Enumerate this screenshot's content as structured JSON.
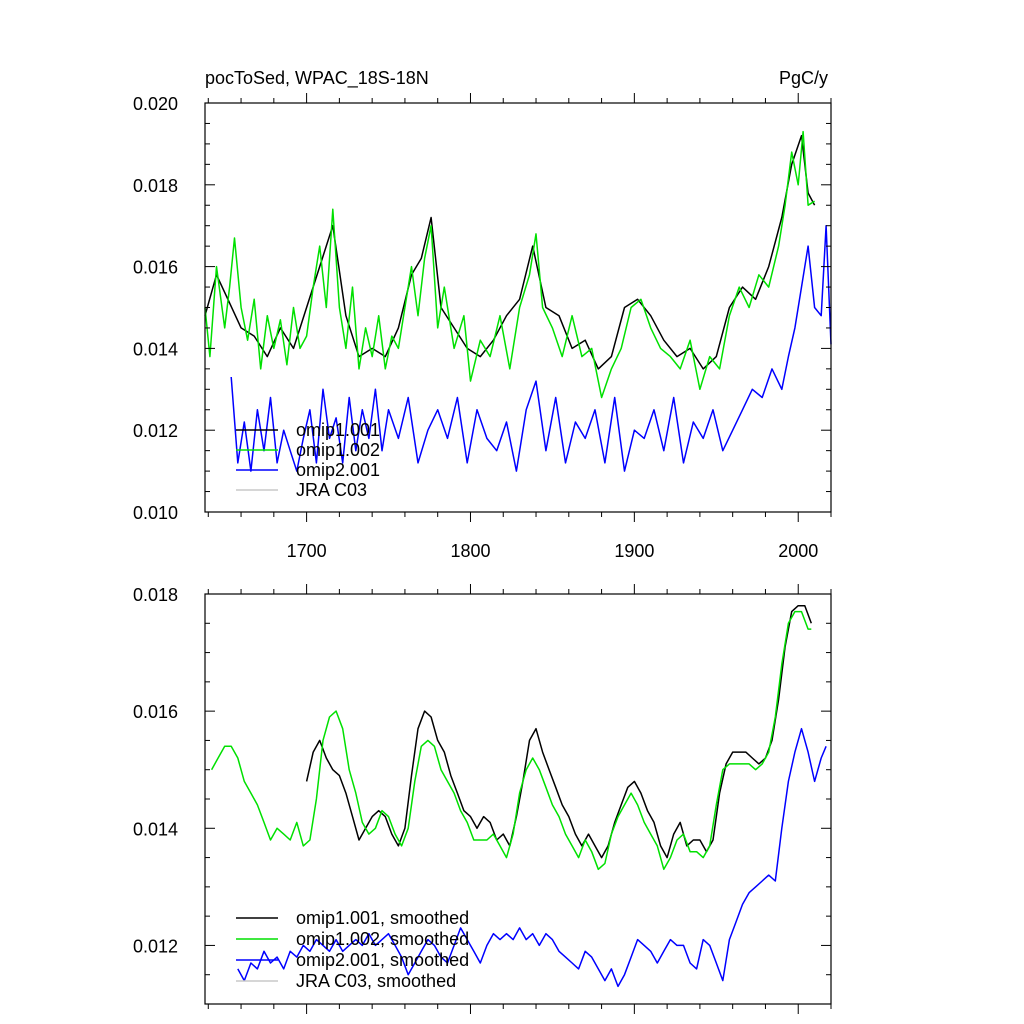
{
  "chart_data": [
    {
      "type": "line",
      "title_left": "pocToSed, WPAC_18S-18N",
      "title_right": "PgC/y",
      "xlim": [
        1638,
        2020
      ],
      "ylim": [
        0.01,
        0.02
      ],
      "x_ticks": [
        1700,
        1800,
        1900,
        2000
      ],
      "x_tick_labels": [
        "1700",
        "1800",
        "1900",
        "2000"
      ],
      "y_ticks": [
        0.01,
        0.012,
        0.014,
        0.016,
        0.018,
        0.02
      ],
      "y_tick_labels": [
        "0.010",
        "0.012",
        "0.014",
        "0.016",
        "0.018",
        "0.020"
      ],
      "grid": false,
      "legend_position": "lower-left",
      "series": [
        {
          "name": "omip1.001",
          "color": "#000000",
          "x": [
            1638,
            1645,
            1652,
            1660,
            1668,
            1676,
            1684,
            1692,
            1700,
            1708,
            1716,
            1724,
            1732,
            1740,
            1748,
            1756,
            1764,
            1770,
            1776,
            1782,
            1790,
            1798,
            1806,
            1814,
            1822,
            1830,
            1838,
            1846,
            1854,
            1862,
            1870,
            1878,
            1886,
            1894,
            1902,
            1910,
            1918,
            1926,
            1934,
            1942,
            1950,
            1958,
            1966,
            1974,
            1982,
            1990,
            1996,
            2002,
            2006,
            2010
          ],
          "y": [
            0.0148,
            0.0158,
            0.0152,
            0.0145,
            0.0143,
            0.0138,
            0.0145,
            0.014,
            0.015,
            0.016,
            0.017,
            0.0148,
            0.0138,
            0.014,
            0.0138,
            0.0145,
            0.0158,
            0.0162,
            0.0172,
            0.015,
            0.0145,
            0.014,
            0.0138,
            0.0142,
            0.0148,
            0.0152,
            0.0165,
            0.015,
            0.0148,
            0.014,
            0.0142,
            0.0135,
            0.0138,
            0.015,
            0.0152,
            0.0148,
            0.0142,
            0.0138,
            0.014,
            0.0135,
            0.0138,
            0.015,
            0.0155,
            0.0152,
            0.016,
            0.0172,
            0.0185,
            0.0192,
            0.0178,
            0.0175
          ]
        },
        {
          "name": "omip1.002",
          "color": "#00e000",
          "x": [
            1638,
            1641,
            1645,
            1650,
            1653,
            1656,
            1660,
            1664,
            1668,
            1672,
            1676,
            1680,
            1684,
            1688,
            1692,
            1696,
            1700,
            1704,
            1708,
            1712,
            1716,
            1720,
            1724,
            1728,
            1732,
            1736,
            1740,
            1744,
            1748,
            1752,
            1756,
            1760,
            1764,
            1768,
            1772,
            1776,
            1780,
            1784,
            1790,
            1796,
            1800,
            1806,
            1812,
            1818,
            1824,
            1830,
            1836,
            1840,
            1844,
            1850,
            1856,
            1862,
            1868,
            1874,
            1880,
            1886,
            1892,
            1898,
            1904,
            1910,
            1916,
            1922,
            1928,
            1934,
            1940,
            1946,
            1952,
            1958,
            1964,
            1970,
            1976,
            1982,
            1988,
            1992,
            1996,
            2000,
            2003,
            2006,
            2010
          ],
          "y": [
            0.015,
            0.0138,
            0.016,
            0.0145,
            0.0155,
            0.0167,
            0.015,
            0.0142,
            0.0152,
            0.0135,
            0.0148,
            0.014,
            0.0147,
            0.0136,
            0.015,
            0.014,
            0.0143,
            0.0155,
            0.0165,
            0.015,
            0.0174,
            0.015,
            0.014,
            0.0155,
            0.0135,
            0.0145,
            0.0138,
            0.0148,
            0.0135,
            0.0143,
            0.014,
            0.015,
            0.016,
            0.0148,
            0.0162,
            0.017,
            0.0145,
            0.0155,
            0.014,
            0.0148,
            0.0132,
            0.0142,
            0.0138,
            0.0148,
            0.0135,
            0.015,
            0.0158,
            0.0168,
            0.015,
            0.0145,
            0.0138,
            0.0148,
            0.0138,
            0.014,
            0.0128,
            0.0135,
            0.014,
            0.015,
            0.0152,
            0.0145,
            0.014,
            0.0138,
            0.0135,
            0.0142,
            0.013,
            0.0138,
            0.0135,
            0.0148,
            0.0155,
            0.015,
            0.0158,
            0.0155,
            0.0165,
            0.0175,
            0.0188,
            0.018,
            0.0193,
            0.0175,
            0.0176
          ]
        },
        {
          "name": "omip2.001",
          "color": "#0000ff",
          "x": [
            1654,
            1658,
            1662,
            1666,
            1670,
            1674,
            1678,
            1682,
            1686,
            1690,
            1694,
            1698,
            1702,
            1706,
            1710,
            1714,
            1718,
            1722,
            1726,
            1730,
            1734,
            1738,
            1742,
            1746,
            1750,
            1756,
            1762,
            1768,
            1774,
            1780,
            1786,
            1792,
            1798,
            1804,
            1810,
            1816,
            1822,
            1828,
            1834,
            1840,
            1846,
            1852,
            1858,
            1864,
            1870,
            1876,
            1882,
            1888,
            1894,
            1900,
            1906,
            1912,
            1918,
            1924,
            1930,
            1936,
            1942,
            1948,
            1954,
            1960,
            1966,
            1972,
            1978,
            1984,
            1990,
            1994,
            1998,
            2002,
            2006,
            2010,
            2014,
            2017,
            2020
          ],
          "y": [
            0.0133,
            0.0112,
            0.0122,
            0.011,
            0.0125,
            0.0115,
            0.0128,
            0.0112,
            0.012,
            0.0115,
            0.011,
            0.0118,
            0.0125,
            0.0112,
            0.013,
            0.0118,
            0.0123,
            0.0112,
            0.0128,
            0.0115,
            0.0125,
            0.0118,
            0.013,
            0.0115,
            0.0125,
            0.0118,
            0.0128,
            0.0112,
            0.012,
            0.0125,
            0.0118,
            0.0128,
            0.0112,
            0.0125,
            0.0118,
            0.0115,
            0.0122,
            0.011,
            0.0125,
            0.0132,
            0.0115,
            0.0128,
            0.0112,
            0.0122,
            0.0118,
            0.0125,
            0.0112,
            0.0128,
            0.011,
            0.012,
            0.0118,
            0.0125,
            0.0115,
            0.0128,
            0.0112,
            0.0122,
            0.0118,
            0.0125,
            0.0115,
            0.012,
            0.0125,
            0.013,
            0.0128,
            0.0135,
            0.013,
            0.0138,
            0.0145,
            0.0155,
            0.0165,
            0.015,
            0.0148,
            0.017,
            0.0141
          ]
        },
        {
          "name": "JRA C03",
          "color": "#c8c8c8",
          "x": [],
          "y": []
        }
      ]
    },
    {
      "type": "line",
      "xlim": [
        1638,
        2020
      ],
      "ylim": [
        0.011,
        0.018
      ],
      "x_ticks": [
        1700,
        1800,
        1900,
        2000
      ],
      "y_ticks": [
        0.012,
        0.014,
        0.016,
        0.018
      ],
      "y_tick_labels": [
        "0.012",
        "0.014",
        "0.016",
        "0.018"
      ],
      "grid": false,
      "legend_position": "lower-left",
      "series": [
        {
          "name": "omip1.001, smoothed",
          "color": "#000000",
          "x": [
            1700,
            1704,
            1708,
            1712,
            1716,
            1720,
            1724,
            1728,
            1732,
            1736,
            1740,
            1744,
            1748,
            1752,
            1756,
            1760,
            1764,
            1768,
            1772,
            1776,
            1780,
            1784,
            1788,
            1792,
            1796,
            1800,
            1804,
            1808,
            1812,
            1816,
            1820,
            1824,
            1828,
            1832,
            1836,
            1840,
            1844,
            1848,
            1852,
            1856,
            1860,
            1864,
            1868,
            1872,
            1876,
            1880,
            1884,
            1888,
            1892,
            1896,
            1900,
            1904,
            1908,
            1912,
            1916,
            1920,
            1924,
            1928,
            1932,
            1936,
            1940,
            1944,
            1948,
            1952,
            1956,
            1960,
            1964,
            1968,
            1972,
            1976,
            1980,
            1984,
            1988,
            1992,
            1996,
            2000,
            2004,
            2008
          ],
          "y": [
            0.0148,
            0.0153,
            0.0155,
            0.0152,
            0.015,
            0.0149,
            0.0146,
            0.0142,
            0.0138,
            0.014,
            0.0142,
            0.0143,
            0.0142,
            0.0139,
            0.0137,
            0.014,
            0.0149,
            0.0157,
            0.016,
            0.0159,
            0.0155,
            0.0153,
            0.0149,
            0.0146,
            0.0143,
            0.0142,
            0.014,
            0.0142,
            0.0141,
            0.0138,
            0.0139,
            0.0137,
            0.0142,
            0.0148,
            0.0155,
            0.0157,
            0.0153,
            0.015,
            0.0147,
            0.0144,
            0.0142,
            0.0139,
            0.0137,
            0.0139,
            0.0137,
            0.0135,
            0.0137,
            0.0141,
            0.0144,
            0.0147,
            0.0148,
            0.0146,
            0.0143,
            0.0141,
            0.0137,
            0.0135,
            0.0139,
            0.0141,
            0.0137,
            0.0138,
            0.0138,
            0.0136,
            0.0138,
            0.0146,
            0.0151,
            0.0153,
            0.0153,
            0.0153,
            0.0152,
            0.0151,
            0.0152,
            0.0155,
            0.0162,
            0.0171,
            0.0177,
            0.0178,
            0.0178,
            0.0175
          ]
        },
        {
          "name": "omip1.002, smoothed",
          "color": "#00e000",
          "x": [
            1642,
            1646,
            1650,
            1654,
            1658,
            1662,
            1666,
            1670,
            1674,
            1678,
            1682,
            1686,
            1690,
            1694,
            1698,
            1702,
            1706,
            1710,
            1714,
            1718,
            1722,
            1726,
            1730,
            1734,
            1738,
            1742,
            1746,
            1750,
            1754,
            1758,
            1762,
            1766,
            1770,
            1774,
            1778,
            1782,
            1786,
            1790,
            1794,
            1798,
            1802,
            1806,
            1810,
            1814,
            1818,
            1822,
            1826,
            1830,
            1834,
            1838,
            1842,
            1846,
            1850,
            1854,
            1858,
            1862,
            1866,
            1870,
            1874,
            1878,
            1882,
            1886,
            1890,
            1894,
            1898,
            1902,
            1906,
            1910,
            1914,
            1918,
            1922,
            1926,
            1930,
            1934,
            1938,
            1942,
            1946,
            1950,
            1954,
            1958,
            1962,
            1966,
            1970,
            1974,
            1978,
            1982,
            1986,
            1990,
            1994,
            1998,
            2002,
            2006,
            2008
          ],
          "y": [
            0.015,
            0.0152,
            0.0154,
            0.0154,
            0.0152,
            0.0148,
            0.0146,
            0.0144,
            0.0141,
            0.0138,
            0.014,
            0.0139,
            0.0138,
            0.0141,
            0.0137,
            0.0138,
            0.0145,
            0.0155,
            0.0159,
            0.016,
            0.0157,
            0.015,
            0.0146,
            0.0141,
            0.0139,
            0.014,
            0.0143,
            0.0142,
            0.0139,
            0.0137,
            0.014,
            0.0148,
            0.0154,
            0.0155,
            0.0154,
            0.015,
            0.0148,
            0.0146,
            0.0143,
            0.0141,
            0.0138,
            0.0138,
            0.0138,
            0.0139,
            0.0137,
            0.0135,
            0.0139,
            0.0146,
            0.015,
            0.0152,
            0.015,
            0.0147,
            0.0144,
            0.0142,
            0.0139,
            0.0137,
            0.0135,
            0.0138,
            0.0136,
            0.0133,
            0.0134,
            0.0139,
            0.0142,
            0.0144,
            0.0146,
            0.0144,
            0.0141,
            0.0139,
            0.0137,
            0.0133,
            0.0135,
            0.0138,
            0.0139,
            0.0136,
            0.0136,
            0.0135,
            0.0137,
            0.0144,
            0.015,
            0.0151,
            0.0151,
            0.0151,
            0.0151,
            0.015,
            0.0151,
            0.0153,
            0.0159,
            0.0168,
            0.0175,
            0.0177,
            0.0177,
            0.0174,
            0.0174
          ]
        },
        {
          "name": "omip2.001, smoothed",
          "color": "#0000ff",
          "x": [
            1658,
            1662,
            1666,
            1670,
            1674,
            1678,
            1682,
            1686,
            1690,
            1694,
            1698,
            1702,
            1706,
            1710,
            1714,
            1718,
            1722,
            1726,
            1730,
            1734,
            1738,
            1742,
            1746,
            1750,
            1754,
            1758,
            1762,
            1766,
            1770,
            1774,
            1778,
            1782,
            1786,
            1790,
            1794,
            1798,
            1802,
            1806,
            1810,
            1814,
            1818,
            1822,
            1826,
            1830,
            1834,
            1838,
            1842,
            1846,
            1850,
            1854,
            1858,
            1862,
            1866,
            1870,
            1874,
            1878,
            1882,
            1886,
            1890,
            1894,
            1898,
            1902,
            1906,
            1910,
            1914,
            1918,
            1922,
            1926,
            1930,
            1934,
            1938,
            1942,
            1946,
            1950,
            1954,
            1958,
            1962,
            1966,
            1970,
            1974,
            1978,
            1982,
            1986,
            1990,
            1994,
            1998,
            2002,
            2006,
            2010,
            2014,
            2017
          ],
          "y": [
            0.0116,
            0.0114,
            0.0117,
            0.0116,
            0.0119,
            0.0117,
            0.0118,
            0.0116,
            0.0119,
            0.0118,
            0.012,
            0.0119,
            0.0121,
            0.012,
            0.0119,
            0.0121,
            0.0119,
            0.012,
            0.0121,
            0.012,
            0.0122,
            0.012,
            0.0121,
            0.0122,
            0.012,
            0.0118,
            0.0115,
            0.0117,
            0.0119,
            0.0121,
            0.012,
            0.0118,
            0.0117,
            0.012,
            0.0123,
            0.0121,
            0.0119,
            0.0117,
            0.012,
            0.0122,
            0.0121,
            0.0122,
            0.0121,
            0.0123,
            0.0121,
            0.0122,
            0.012,
            0.0122,
            0.0121,
            0.0119,
            0.0118,
            0.0117,
            0.0116,
            0.0119,
            0.0118,
            0.0116,
            0.0114,
            0.0116,
            0.0113,
            0.0115,
            0.0118,
            0.0121,
            0.012,
            0.0119,
            0.0117,
            0.0119,
            0.0121,
            0.012,
            0.012,
            0.0117,
            0.0116,
            0.0121,
            0.012,
            0.0117,
            0.0114,
            0.0121,
            0.0124,
            0.0127,
            0.0129,
            0.013,
            0.0131,
            0.0132,
            0.0131,
            0.014,
            0.0148,
            0.0153,
            0.0157,
            0.0153,
            0.0148,
            0.0152,
            0.0154
          ]
        },
        {
          "name": "JRA C03, smoothed",
          "color": "#c8c8c8",
          "x": [],
          "y": []
        }
      ]
    }
  ]
}
